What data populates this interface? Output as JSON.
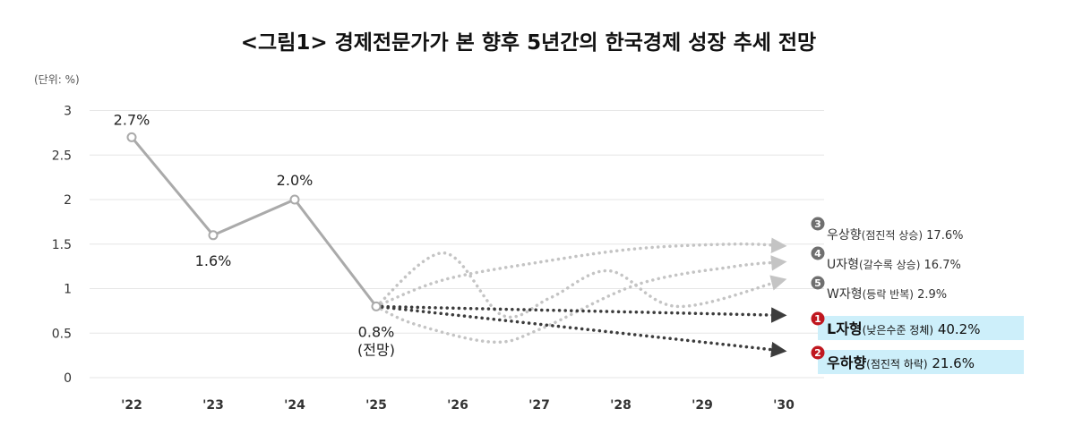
{
  "chart_data": {
    "type": "line",
    "title": "<그림1> 경제전문가가 본 향후 5년간의 한국경제 성장 추세 전망",
    "unit": "(단위: %)",
    "categories": [
      "'22",
      "'23",
      "'24",
      "'25",
      "'26",
      "'27",
      "'28",
      "'29",
      "'30"
    ],
    "ylim": [
      0,
      3
    ],
    "yticks": [
      "0",
      "0.5",
      "1",
      "1.5",
      "2",
      "2.5",
      "3"
    ],
    "grid": true,
    "actual": {
      "x": [
        "'22",
        "'23",
        "'24",
        "'25"
      ],
      "values": [
        2.7,
        1.6,
        2.0,
        0.8
      ],
      "labels": [
        "2.7%",
        "1.6%",
        "2.0%",
        "0.8%"
      ],
      "sublabel_last": "(전망)"
    },
    "scenarios": [
      {
        "rank": "3",
        "label_main": "우상향",
        "label_sub": "(점진적 상승)",
        "share": "17.6%",
        "style": "light",
        "path": [
          [
            0.8,
            0.8
          ],
          [
            1.5,
            1.1
          ],
          [
            2.5,
            1.3
          ],
          [
            3.5,
            1.45
          ],
          [
            4.5,
            1.5
          ],
          [
            5.0,
            1.48
          ]
        ]
      },
      {
        "rank": "4",
        "label_main": "U자형",
        "label_sub": "(갈수록 상승)",
        "share": "16.7%",
        "style": "light",
        "path": [
          [
            0.8,
            0.8
          ],
          [
            1.2,
            0.6
          ],
          [
            2.0,
            0.4
          ],
          [
            2.5,
            0.55
          ],
          [
            3.5,
            1.05
          ],
          [
            4.5,
            1.25
          ],
          [
            5.0,
            1.3
          ]
        ]
      },
      {
        "rank": "5",
        "label_main": "W자형",
        "label_sub": "(등락 반복)",
        "share": "2.9%",
        "style": "light",
        "path": [
          [
            0.8,
            0.8
          ],
          [
            1.5,
            1.4
          ],
          [
            2.1,
            0.7
          ],
          [
            2.6,
            0.9
          ],
          [
            3.2,
            1.2
          ],
          [
            3.9,
            0.8
          ],
          [
            5.0,
            1.1
          ]
        ]
      },
      {
        "rank": "1",
        "label_main": "L자형",
        "label_sub": "(낮은수준 정체)",
        "share": "40.2%",
        "style": "dark",
        "path": [
          [
            0.8,
            0.8
          ],
          [
            5.0,
            0.7
          ]
        ]
      },
      {
        "rank": "2",
        "label_main": "우하향",
        "label_sub": "(점진적 하락)",
        "share": "21.6%",
        "style": "dark",
        "path": [
          [
            0.8,
            0.8
          ],
          [
            5.0,
            0.3
          ]
        ]
      }
    ]
  },
  "colors": {
    "actual_line": "#aaaaaa",
    "light_dots": "#c4c4c4",
    "dark_dots": "#3c3c3c",
    "grid": "#e6e6e6",
    "badge_red": "#c0171f",
    "badge_gray": "#6f6f6f",
    "highlight": "#cdeffa"
  }
}
